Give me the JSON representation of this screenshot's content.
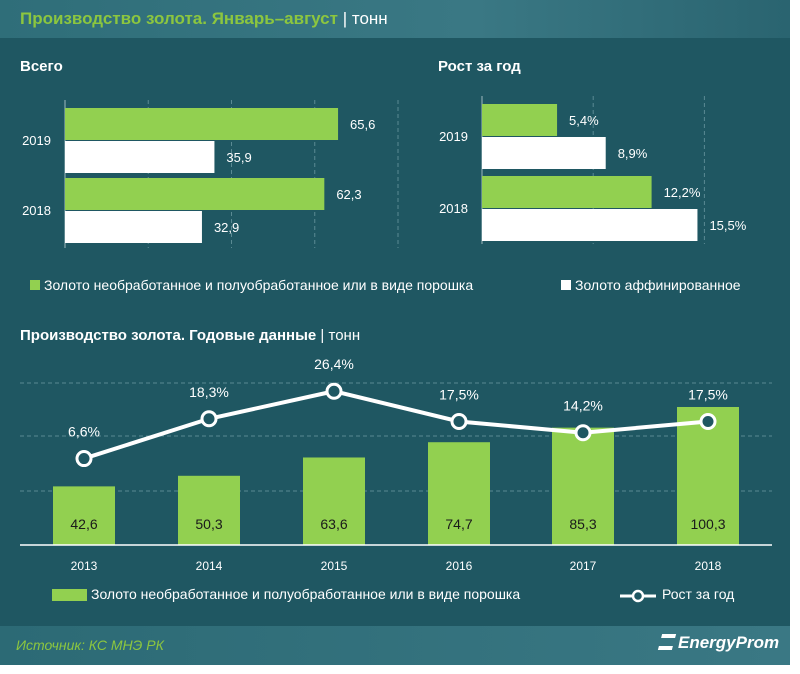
{
  "header": {
    "title": "Производство золота. Январь–август",
    "unit": "тонн"
  },
  "colors": {
    "green": "#92d050",
    "white": "#ffffff",
    "background": "#1f5762",
    "title_green": "#8cc63f"
  },
  "chart_data": [
    {
      "type": "bar",
      "orientation": "horizontal",
      "title": "Всего",
      "categories": [
        "2019",
        "2018"
      ],
      "series": [
        {
          "name": "Золото необработанное и полуобработанное или в виде порошка",
          "values": [
            65.6,
            62.3
          ],
          "labels": [
            "65,6",
            "62,3"
          ]
        },
        {
          "name": "Золото аффинированное",
          "values": [
            35.9,
            32.9
          ],
          "labels": [
            "35,9",
            "32,9"
          ]
        }
      ],
      "xlim": [
        0,
        80
      ],
      "grid": true
    },
    {
      "type": "bar",
      "orientation": "horizontal",
      "title": "Рост за год",
      "categories": [
        "2019",
        "2018"
      ],
      "series": [
        {
          "name": "Золото необработанное и полуобработанное или в виде порошка",
          "values": [
            5.4,
            12.2
          ],
          "labels": [
            "5,4%",
            "12,2%"
          ]
        },
        {
          "name": "Золото аффинированное",
          "values": [
            8.9,
            15.5
          ],
          "labels": [
            "8,9%",
            "15,5%"
          ]
        }
      ],
      "xlim": [
        0,
        16
      ],
      "grid": true
    },
    {
      "type": "bar+line",
      "title": "Производство  золота. Годовые данные",
      "unit": "тонн",
      "categories": [
        "2013",
        "2014",
        "2015",
        "2016",
        "2017",
        "2018"
      ],
      "series": [
        {
          "name": "Золото необработанное и полуобработанное или в виде порошка",
          "type": "bar",
          "values": [
            42.6,
            50.3,
            63.6,
            74.7,
            85.3,
            100.3
          ],
          "labels": [
            "42,6",
            "50,3",
            "63,6",
            "74,7",
            "85,3",
            "100,3"
          ]
        },
        {
          "name": "Рост за год",
          "type": "line",
          "values": [
            6.6,
            18.3,
            26.4,
            17.5,
            14.2,
            17.5
          ],
          "labels": [
            "6,6%",
            "18,3%",
            "26,4%",
            "17,5%",
            "14,2%",
            "17,5%"
          ]
        }
      ],
      "grid": true
    }
  ],
  "legend_top": [
    "Золото необработанное и полуобработанное или в виде порошка",
    "Золото аффинированное"
  ],
  "footer": {
    "source": "Источник: КС МНЭ РК",
    "logo": "EnergyProm"
  }
}
